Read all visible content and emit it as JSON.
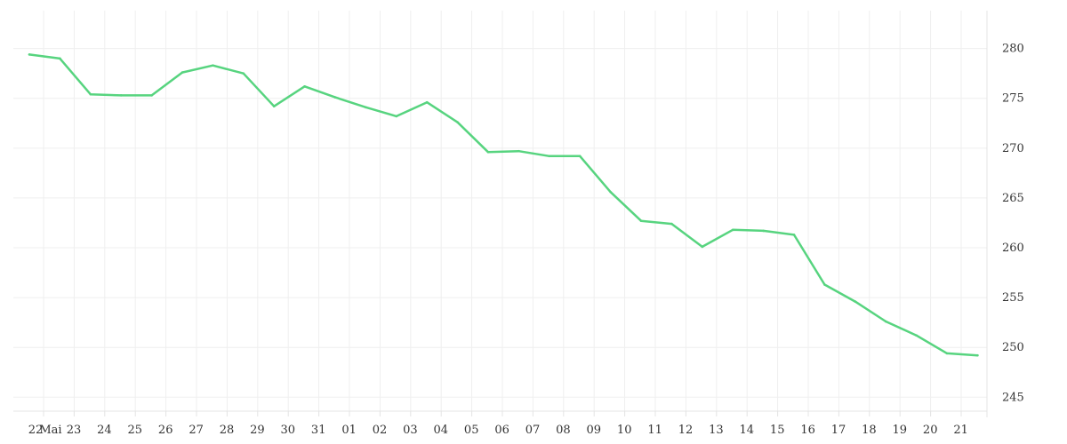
{
  "chart_data": {
    "type": "line",
    "title": "",
    "xlabel": "",
    "ylabel": "",
    "x_tick_labels": [
      "22",
      "Mai",
      "23",
      "24",
      "25",
      "26",
      "27",
      "28",
      "29",
      "30",
      "31",
      "01",
      "02",
      "03",
      "04",
      "05",
      "06",
      "07",
      "08",
      "09",
      "10",
      "11",
      "12",
      "13",
      "14",
      "15",
      "16",
      "17",
      "18",
      "19",
      "20",
      "21"
    ],
    "y_ticks": [
      245,
      250,
      255,
      260,
      265,
      270,
      275,
      280
    ],
    "ylim": [
      243.6,
      283.8
    ],
    "grid": true,
    "legend": "none",
    "line_color": "#57d47f",
    "series": [
      {
        "x": [
          "22 Mai",
          "22 Mai",
          "23 Mai",
          "24 Mai",
          "25 Mai",
          "26 Mai",
          "27 Mai",
          "28 Mai",
          "29 Mai",
          "30 Mai",
          "31 Mai",
          "01",
          "02",
          "03",
          "04",
          "05",
          "06",
          "07",
          "08",
          "09",
          "10",
          "11",
          "12",
          "13",
          "14",
          "15",
          "16",
          "17",
          "18",
          "19",
          "20",
          "21"
        ],
        "values": [
          279.4,
          279.0,
          275.4,
          275.3,
          275.3,
          277.6,
          278.3,
          277.5,
          274.2,
          276.2,
          275.1,
          274.1,
          273.2,
          274.6,
          272.6,
          269.6,
          269.7,
          269.2,
          269.2,
          265.6,
          262.7,
          262.4,
          260.1,
          261.8,
          261.7,
          261.3,
          256.3,
          254.6,
          252.6,
          251.2,
          249.4,
          249.2
        ]
      }
    ]
  }
}
